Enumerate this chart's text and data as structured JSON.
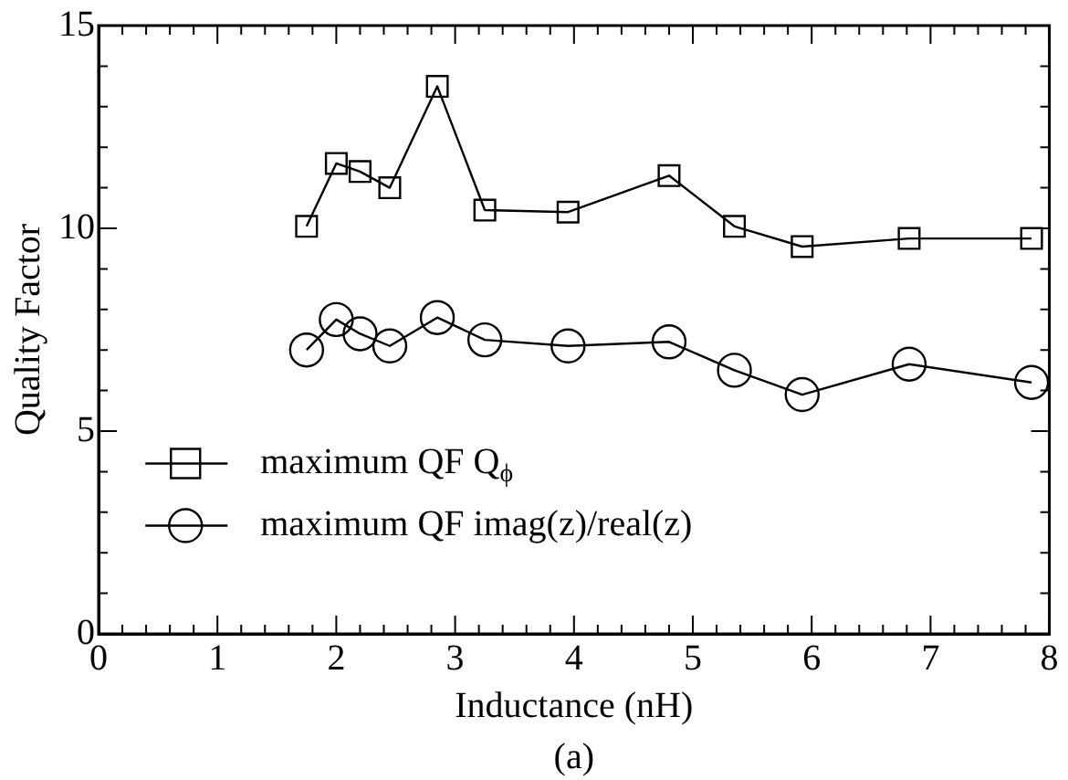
{
  "chart_data": {
    "type": "line",
    "xlabel": "Inductance (nH)",
    "ylabel": "Quality Factor",
    "annotations": [
      "(a)"
    ],
    "xlim": [
      0,
      8
    ],
    "ylim": [
      0,
      15
    ],
    "xticks": [
      0,
      {
        "value": 0.2,
        "label": null
      },
      {
        "value": 0.4,
        "label": null
      },
      {
        "value": 0.6,
        "label": null
      },
      {
        "value": 0.8,
        "label": null
      },
      1,
      {
        "value": 1.2,
        "label": null
      },
      {
        "value": 1.4,
        "label": null
      },
      {
        "value": 1.6,
        "label": null
      },
      {
        "value": 1.8,
        "label": null
      },
      2,
      {
        "value": 2.2,
        "label": null
      },
      {
        "value": 2.4,
        "label": null
      },
      {
        "value": 2.6,
        "label": null
      },
      {
        "value": 2.8,
        "label": null
      },
      3,
      {
        "value": 3.2,
        "label": null
      },
      {
        "value": 3.4,
        "label": null
      },
      {
        "value": 3.6,
        "label": null
      },
      {
        "value": 3.8,
        "label": null
      },
      4,
      {
        "value": 4.2,
        "label": null
      },
      {
        "value": 4.4,
        "label": null
      },
      {
        "value": 4.6,
        "label": null
      },
      {
        "value": 4.8,
        "label": null
      },
      5,
      {
        "value": 5.2,
        "label": null
      },
      {
        "value": 5.4,
        "label": null
      },
      {
        "value": 5.6,
        "label": null
      },
      {
        "value": 5.8,
        "label": null
      },
      6,
      {
        "value": 6.2,
        "label": null
      },
      {
        "value": 6.4,
        "label": null
      },
      {
        "value": 6.6,
        "label": null
      },
      {
        "value": 6.8,
        "label": null
      },
      7,
      {
        "value": 7.2,
        "label": null
      },
      {
        "value": 7.4,
        "label": null
      },
      {
        "value": 7.6,
        "label": null
      },
      {
        "value": 7.8,
        "label": null
      },
      8
    ],
    "yticks": [
      0,
      {
        "value": 1,
        "label": null
      },
      {
        "value": 2,
        "label": null
      },
      {
        "value": 3,
        "label": null
      },
      {
        "value": 4,
        "label": null
      },
      5,
      {
        "value": 6,
        "label": null
      },
      {
        "value": 7,
        "label": null
      },
      {
        "value": 8,
        "label": null
      },
      {
        "value": 9,
        "label": null
      },
      10,
      {
        "value": 11,
        "label": null
      },
      {
        "value": 12,
        "label": null
      },
      {
        "value": 13,
        "label": null
      },
      {
        "value": 14,
        "label": null
      },
      15
    ],
    "grid": false,
    "legend": "left",
    "line_style": "solid",
    "x": [
      1.75,
      2.0,
      2.2,
      2.45,
      2.85,
      3.25,
      3.95,
      4.8,
      5.35,
      5.92,
      6.82,
      7.85
    ],
    "series": [
      {
        "name": "maximum QF Q$_{ϕ}$",
        "color": "#000000",
        "marker": "square",
        "values": [
          10.05,
          11.6,
          11.4,
          11.0,
          13.5,
          10.45,
          10.4,
          11.3,
          10.05,
          9.55,
          9.75,
          9.75
        ]
      },
      {
        "name": "maximum QF imag(z)/real(z)",
        "color": "#000000",
        "marker": "circle",
        "values": [
          7.0,
          7.75,
          7.4,
          7.1,
          7.8,
          7.25,
          7.1,
          7.2,
          6.5,
          5.9,
          6.65,
          6.2
        ]
      }
    ]
  }
}
